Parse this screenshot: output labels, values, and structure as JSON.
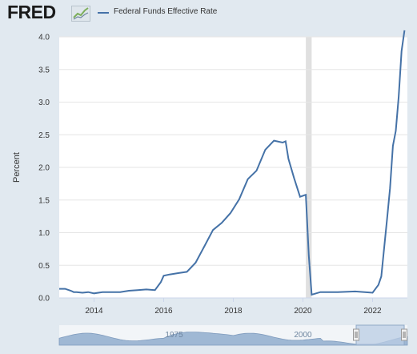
{
  "header": {
    "logo": "FRED",
    "logo_icon": "trend-chart-icon",
    "legend_label": "Federal Funds Effective Rate"
  },
  "colors": {
    "background": "#e1e9f0",
    "plot_background": "#ffffff",
    "series": "#4572a7",
    "recession_shade": "#e0e0e0",
    "navigator_fill": "#9fb8d4",
    "navigator_window": "#b9cce4"
  },
  "chart_data": {
    "type": "line",
    "title": "",
    "xlabel": "",
    "ylabel": "Percent",
    "ylim": [
      0,
      4
    ],
    "xlim": [
      "2013-01",
      "2022-12"
    ],
    "yticks": [
      "0.0",
      "0.5",
      "1.0",
      "1.5",
      "2.0",
      "2.5",
      "3.0",
      "3.5",
      "4.0"
    ],
    "xticks": [
      "2014",
      "2016",
      "2018",
      "2020",
      "2022"
    ],
    "grid": "horizontal",
    "legend": "top-left",
    "recession_shading": [
      [
        "2020-02",
        "2020-04"
      ]
    ],
    "series": [
      {
        "name": "Federal Funds Effective Rate",
        "x": [
          "2013-01",
          "2013-03",
          "2013-05",
          "2013-06",
          "2013-07",
          "2013-09",
          "2013-11",
          "2014-01",
          "2014-04",
          "2014-07",
          "2014-10",
          "2015-01",
          "2015-04",
          "2015-07",
          "2015-10",
          "2015-12",
          "2016-01",
          "2016-03",
          "2016-06",
          "2016-09",
          "2016-12",
          "2017-03",
          "2017-06",
          "2017-09",
          "2017-12",
          "2018-03",
          "2018-06",
          "2018-09",
          "2018-12",
          "2019-03",
          "2019-06",
          "2019-07",
          "2019-08",
          "2019-10",
          "2019-12",
          "2020-02",
          "2020-03",
          "2020-04",
          "2020-07",
          "2021-01",
          "2021-07",
          "2022-01",
          "2022-03",
          "2022-04",
          "2022-05",
          "2022-06",
          "2022-07",
          "2022-08",
          "2022-09",
          "2022-10",
          "2022-11",
          "2022-12"
        ],
        "values": [
          0.14,
          0.14,
          0.11,
          0.09,
          0.09,
          0.08,
          0.09,
          0.07,
          0.09,
          0.09,
          0.09,
          0.11,
          0.12,
          0.13,
          0.12,
          0.24,
          0.34,
          0.36,
          0.38,
          0.4,
          0.54,
          0.79,
          1.04,
          1.15,
          1.3,
          1.51,
          1.82,
          1.95,
          2.27,
          2.41,
          2.38,
          2.4,
          2.13,
          1.83,
          1.55,
          1.58,
          0.65,
          0.05,
          0.09,
          0.09,
          0.1,
          0.08,
          0.2,
          0.33,
          0.77,
          1.21,
          1.68,
          2.33,
          2.56,
          3.08,
          3.78,
          4.1
        ]
      }
    ]
  },
  "navigator": {
    "labels": [
      "1975",
      "2000"
    ]
  }
}
